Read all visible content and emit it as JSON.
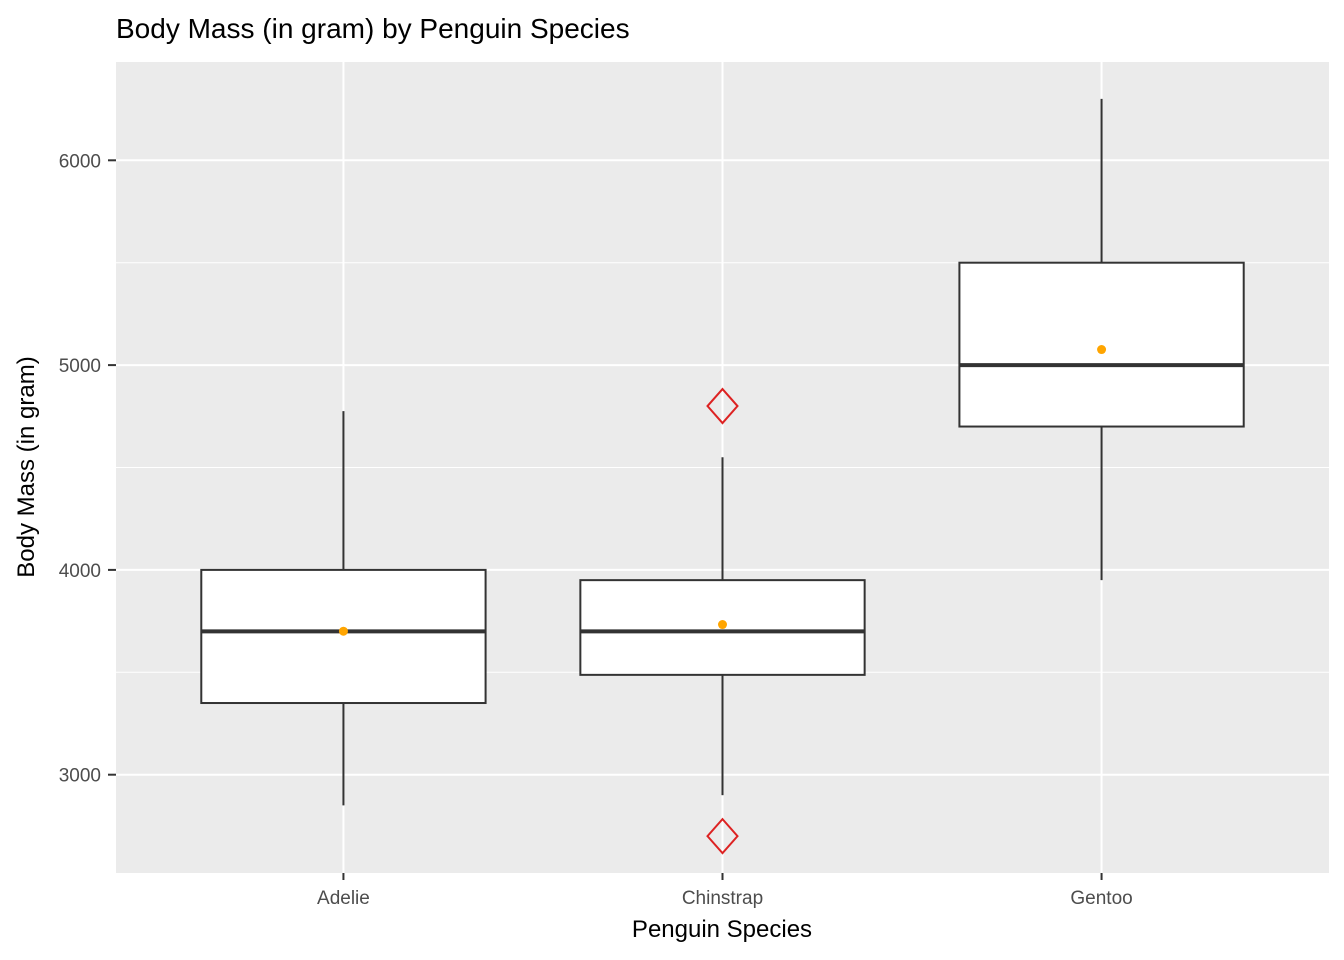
{
  "title": "Body Mass (in gram) by Penguin Species",
  "x_axis": {
    "title": "Penguin Species",
    "categories": [
      "Adelie",
      "Chinstrap",
      "Gentoo"
    ]
  },
  "y_axis": {
    "title": "Body Mass (in gram)",
    "tick_labels": [
      "3000",
      "4000",
      "5000",
      "6000"
    ]
  },
  "colors": {
    "panel_bg": "#EBEBEB",
    "gridline": "#FFFFFF",
    "box_stroke": "#333333",
    "box_fill": "#FFFFFF",
    "mean_dot": "#FFA500",
    "outlier_stroke": "#DD2222",
    "tick_mark": "#333333",
    "tick_text": "#4D4D4D"
  },
  "chart_data": {
    "type": "boxplot",
    "title": "Body Mass (in gram) by Penguin Species",
    "xlabel": "Penguin Species",
    "ylabel": "Body Mass (in gram)",
    "categories": [
      "Adelie",
      "Chinstrap",
      "Gentoo"
    ],
    "ylim": [
      2520,
      6480
    ],
    "y_major_gridlines": [
      3000,
      4000,
      5000,
      6000
    ],
    "y_minor_gridlines": [
      3500,
      4500,
      5500
    ],
    "grid": true,
    "legend": "none",
    "series": [
      {
        "name": "Adelie",
        "whisker_low": 2850,
        "q1": 3350,
        "median": 3700,
        "q3": 4000,
        "whisker_high": 4775,
        "mean": 3700.66,
        "outliers": []
      },
      {
        "name": "Chinstrap",
        "whisker_low": 2900,
        "q1": 3487.5,
        "median": 3700,
        "q3": 3950,
        "whisker_high": 4550,
        "mean": 3733.09,
        "outliers": [
          2700,
          4800
        ]
      },
      {
        "name": "Gentoo",
        "whisker_low": 3950,
        "q1": 4700,
        "median": 5000,
        "q3": 5500,
        "whisker_high": 6300,
        "mean": 5076.02,
        "outliers": []
      }
    ]
  }
}
